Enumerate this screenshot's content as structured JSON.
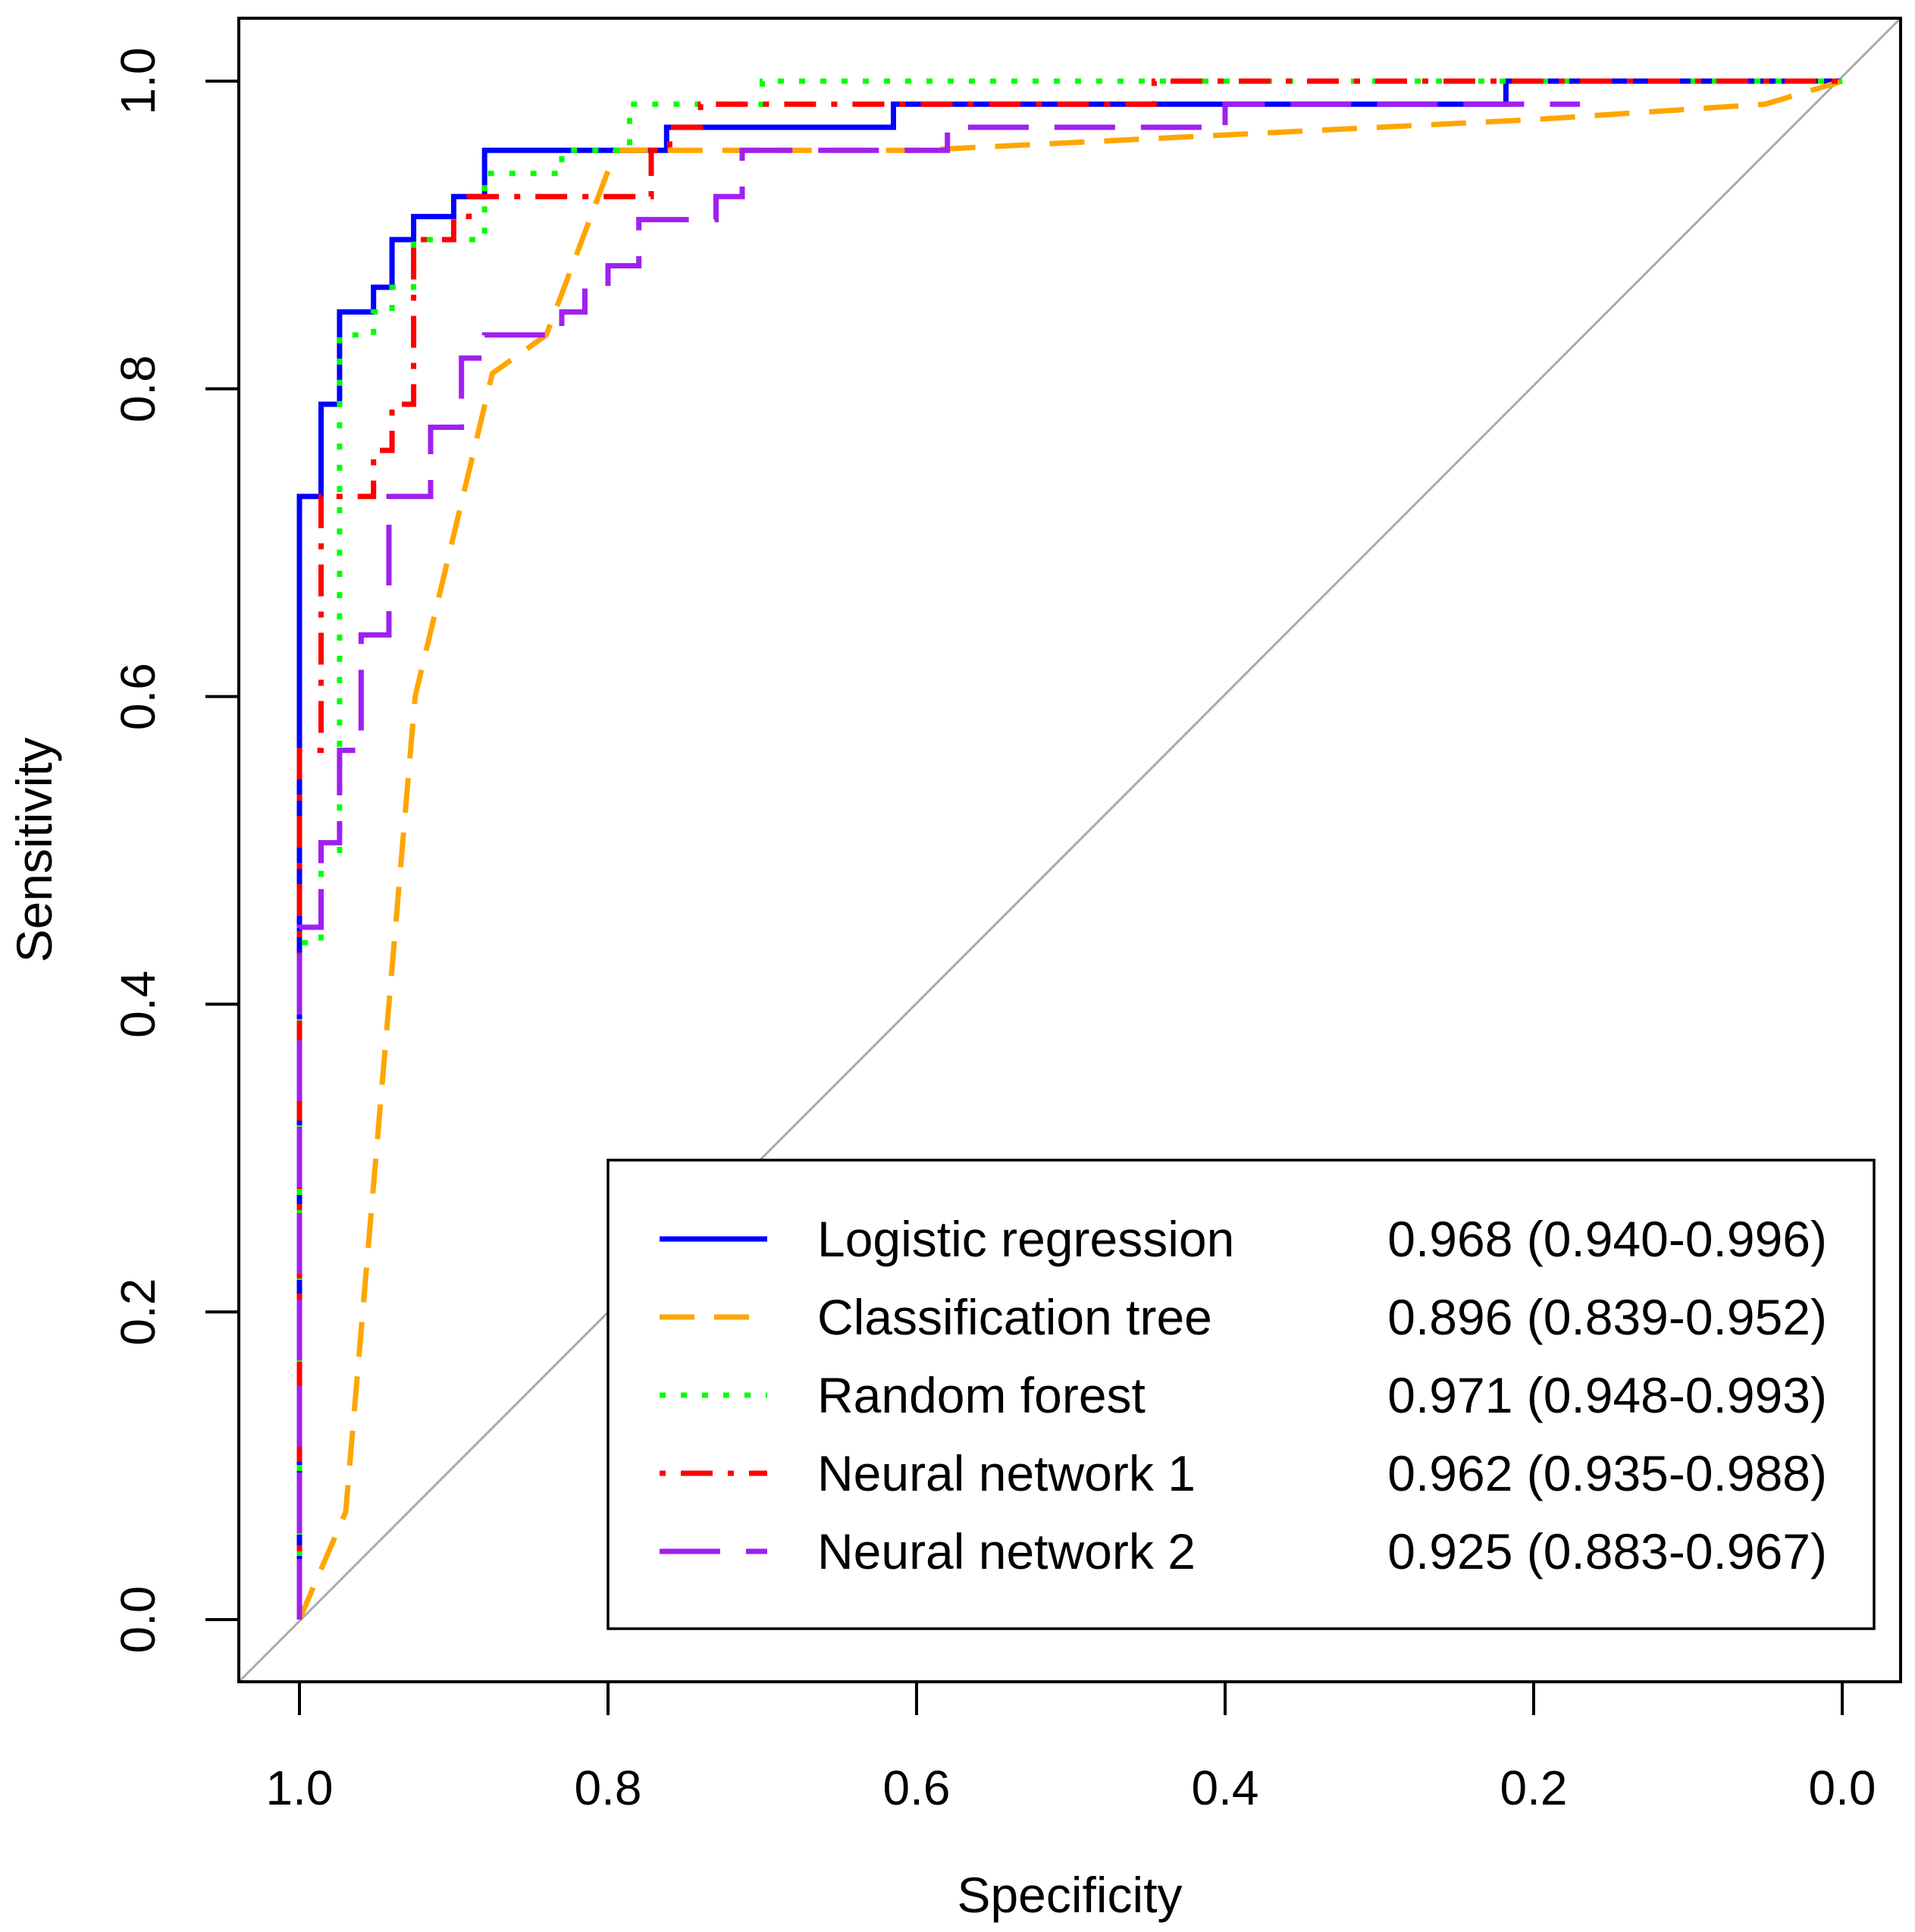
{
  "chart_data": {
    "type": "line",
    "title": "",
    "xlabel": "Specificity",
    "ylabel": "Sensitivity",
    "xlim": [
      1.0,
      0.0
    ],
    "ylim": [
      0.0,
      1.0
    ],
    "x_ticks": [
      "1.0",
      "0.8",
      "0.6",
      "0.4",
      "0.2",
      "0.0"
    ],
    "y_ticks": [
      "0.0",
      "0.2",
      "0.4",
      "0.6",
      "0.8",
      "1.0"
    ],
    "reference_line": {
      "color": "#aaaaaa",
      "from": [
        1.0,
        0.0
      ],
      "to": [
        0.0,
        1.0
      ]
    },
    "legend_position": "bottom-right",
    "series": [
      {
        "name": "Logistic regression",
        "auc": "0.968 (0.940-0.996)",
        "color": "#0000ff",
        "style": "solid",
        "points": [
          [
            1.0,
            0.0
          ],
          [
            1.0,
            0.73
          ],
          [
            0.986,
            0.73
          ],
          [
            0.986,
            0.79
          ],
          [
            0.974,
            0.79
          ],
          [
            0.974,
            0.85
          ],
          [
            0.952,
            0.85
          ],
          [
            0.952,
            0.866
          ],
          [
            0.94,
            0.866
          ],
          [
            0.94,
            0.897
          ],
          [
            0.926,
            0.897
          ],
          [
            0.926,
            0.912
          ],
          [
            0.9,
            0.912
          ],
          [
            0.9,
            0.925
          ],
          [
            0.88,
            0.925
          ],
          [
            0.88,
            0.955
          ],
          [
            0.762,
            0.955
          ],
          [
            0.762,
            0.97
          ],
          [
            0.615,
            0.97
          ],
          [
            0.615,
            0.985
          ],
          [
            0.218,
            0.985
          ],
          [
            0.218,
            1.0
          ],
          [
            0.0,
            1.0
          ]
        ]
      },
      {
        "name": "Classification tree",
        "auc": "0.896 (0.839-0.952)",
        "color": "#ffa500",
        "style": "dashed",
        "points": [
          [
            1.0,
            0.0
          ],
          [
            0.97,
            0.07
          ],
          [
            0.925,
            0.6
          ],
          [
            0.875,
            0.81
          ],
          [
            0.84,
            0.835
          ],
          [
            0.795,
            0.955
          ],
          [
            0.6,
            0.955
          ],
          [
            0.4,
            0.965
          ],
          [
            0.2,
            0.975
          ],
          [
            0.05,
            0.985
          ],
          [
            0.0,
            1.0
          ]
        ]
      },
      {
        "name": "Random forest",
        "auc": "0.971 (0.948-0.993)",
        "color": "#00ff00",
        "style": "dotted",
        "points": [
          [
            1.0,
            0.0
          ],
          [
            1.0,
            0.44
          ],
          [
            0.986,
            0.44
          ],
          [
            0.986,
            0.5
          ],
          [
            0.974,
            0.5
          ],
          [
            0.974,
            0.835
          ],
          [
            0.952,
            0.835
          ],
          [
            0.952,
            0.85
          ],
          [
            0.94,
            0.85
          ],
          [
            0.94,
            0.866
          ],
          [
            0.926,
            0.866
          ],
          [
            0.926,
            0.897
          ],
          [
            0.88,
            0.897
          ],
          [
            0.88,
            0.94
          ],
          [
            0.83,
            0.94
          ],
          [
            0.83,
            0.955
          ],
          [
            0.786,
            0.955
          ],
          [
            0.786,
            0.985
          ],
          [
            0.7,
            0.985
          ],
          [
            0.7,
            1.0
          ],
          [
            0.0,
            1.0
          ]
        ]
      },
      {
        "name": "Neural network 1",
        "auc": "0.962 (0.935-0.988)",
        "color": "#ff0000",
        "style": "dotdash",
        "points": [
          [
            1.0,
            0.0
          ],
          [
            1.0,
            0.565
          ],
          [
            0.986,
            0.565
          ],
          [
            0.986,
            0.73
          ],
          [
            0.952,
            0.73
          ],
          [
            0.952,
            0.76
          ],
          [
            0.94,
            0.76
          ],
          [
            0.94,
            0.79
          ],
          [
            0.926,
            0.79
          ],
          [
            0.926,
            0.897
          ],
          [
            0.9,
            0.897
          ],
          [
            0.9,
            0.912
          ],
          [
            0.89,
            0.912
          ],
          [
            0.89,
            0.925
          ],
          [
            0.772,
            0.925
          ],
          [
            0.772,
            0.955
          ],
          [
            0.76,
            0.955
          ],
          [
            0.76,
            0.97
          ],
          [
            0.74,
            0.97
          ],
          [
            0.74,
            0.985
          ],
          [
            0.446,
            0.985
          ],
          [
            0.446,
            1.0
          ],
          [
            0.0,
            1.0
          ]
        ]
      },
      {
        "name": "Neural network 2",
        "auc": "0.925 (0.883-0.967)",
        "color": "#a020f0",
        "style": "longdash",
        "points": [
          [
            1.0,
            0.0
          ],
          [
            1.0,
            0.45
          ],
          [
            0.986,
            0.45
          ],
          [
            0.986,
            0.505
          ],
          [
            0.974,
            0.505
          ],
          [
            0.974,
            0.565
          ],
          [
            0.96,
            0.565
          ],
          [
            0.96,
            0.64
          ],
          [
            0.942,
            0.64
          ],
          [
            0.942,
            0.73
          ],
          [
            0.915,
            0.73
          ],
          [
            0.915,
            0.775
          ],
          [
            0.895,
            0.775
          ],
          [
            0.895,
            0.82
          ],
          [
            0.88,
            0.82
          ],
          [
            0.88,
            0.835
          ],
          [
            0.83,
            0.835
          ],
          [
            0.83,
            0.85
          ],
          [
            0.815,
            0.85
          ],
          [
            0.815,
            0.866
          ],
          [
            0.8,
            0.866
          ],
          [
            0.8,
            0.88
          ],
          [
            0.78,
            0.88
          ],
          [
            0.78,
            0.91
          ],
          [
            0.73,
            0.91
          ],
          [
            0.73,
            0.925
          ],
          [
            0.713,
            0.925
          ],
          [
            0.713,
            0.955
          ],
          [
            0.58,
            0.955
          ],
          [
            0.58,
            0.97
          ],
          [
            0.4,
            0.97
          ],
          [
            0.4,
            0.985
          ],
          [
            0.17,
            0.985
          ]
        ]
      }
    ]
  }
}
